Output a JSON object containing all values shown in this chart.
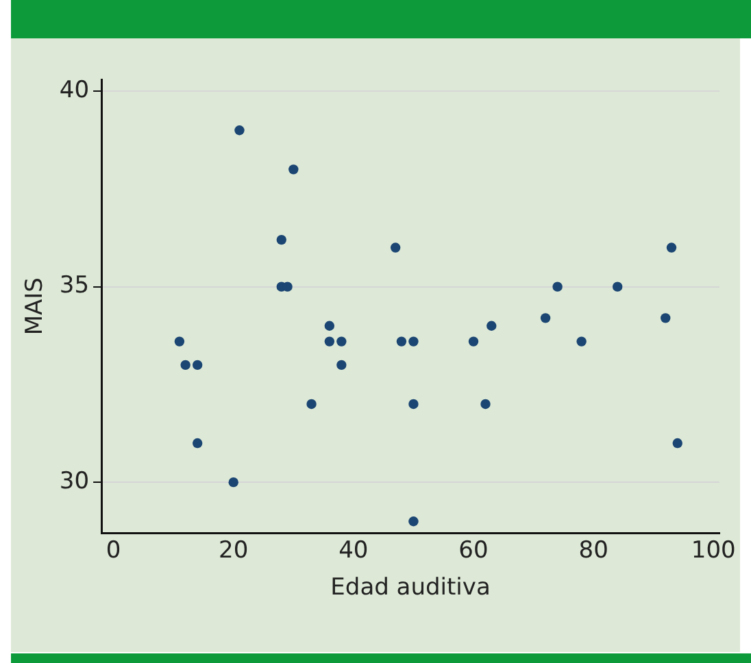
{
  "chart_data": {
    "type": "scatter",
    "xlabel": "Edad auditiva",
    "ylabel": "MAIS",
    "x": [
      11,
      12,
      14,
      14,
      20,
      21,
      28,
      28,
      29,
      30,
      33,
      36,
      36,
      38,
      38,
      47,
      48,
      50,
      50,
      50,
      60,
      62,
      63,
      72,
      74,
      78,
      84,
      92,
      93,
      94
    ],
    "values": [
      33.6,
      33,
      33,
      31,
      30,
      39,
      36.2,
      35,
      35,
      38,
      32,
      34,
      33.6,
      33.6,
      33,
      36,
      33.6,
      33.6,
      32,
      29,
      33.6,
      32,
      34,
      34.2,
      35,
      33.6,
      35,
      34.2,
      36,
      31
    ],
    "color": "#1b4573",
    "marker": "circle",
    "xlim": [
      -2,
      101
    ],
    "ylim": [
      28.7,
      40.3
    ],
    "xticks": [
      0,
      20,
      40,
      60,
      80,
      100
    ],
    "yticks": [
      30,
      35,
      40
    ],
    "grid": "y",
    "legend": false
  }
}
